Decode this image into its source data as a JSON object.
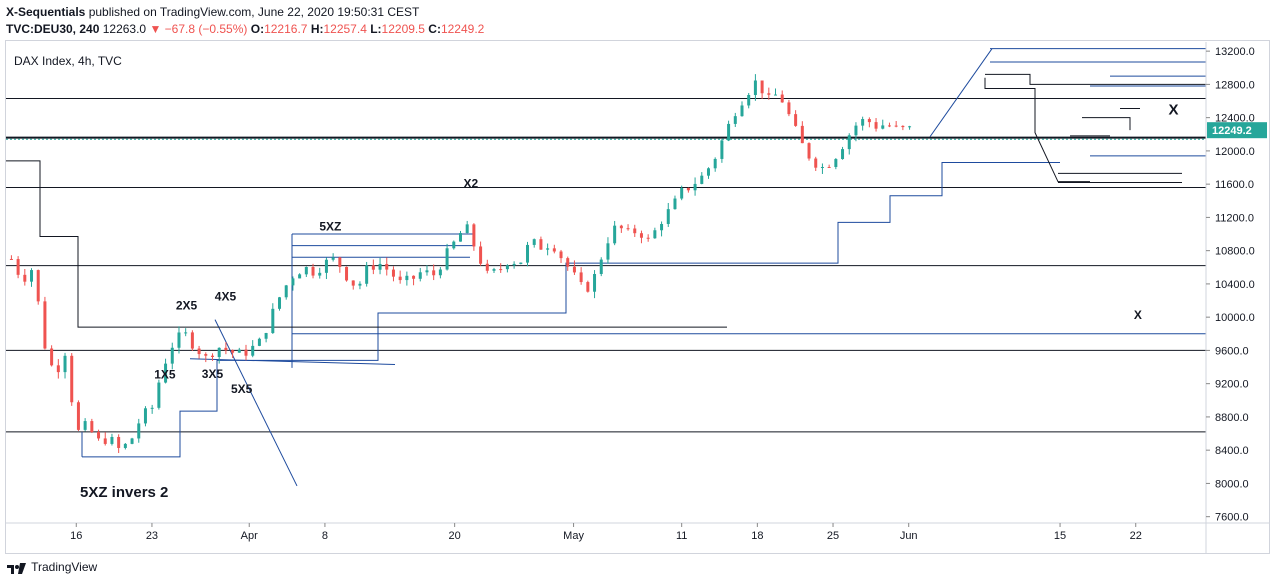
{
  "header": {
    "user": "X-Sequentials",
    "published_text": "published on TradingView.com, June 22, 2020 19:50:31 CEST",
    "symbol": "TVC:DEU30, 240",
    "last": "12263.0",
    "change": "▼ −67.8 (−0.55%)",
    "o_label": "O:",
    "o_value": "12216.7",
    "h_label": "H:",
    "h_value": "12257.4",
    "l_label": "L:",
    "l_value": "12209.5",
    "c_label": "C:",
    "c_value": "12249.2"
  },
  "footer": {
    "brand": "TradingView"
  },
  "colors": {
    "up": "#26a69a",
    "down": "#ef5350",
    "blue": "#1e4b9e",
    "black": "#131722",
    "price_tag": "#26a69a"
  },
  "chart_data": {
    "type": "candlestick",
    "title": "DAX Index, 4h, TVC",
    "current_price": 12249.2,
    "current_price_label": "12249.2",
    "ylim": [
      7560,
      13310
    ],
    "y_ticks": [
      {
        "value": 13200,
        "label": "13200.0"
      },
      {
        "value": 12800,
        "label": "12800.0"
      },
      {
        "value": 12400,
        "label": "12400.0"
      },
      {
        "value": 12000,
        "label": "12000.0"
      },
      {
        "value": 11600,
        "label": "11600.0"
      },
      {
        "value": 11200,
        "label": "11200.0"
      },
      {
        "value": 10800,
        "label": "10800.0"
      },
      {
        "value": 10400,
        "label": "10400.0"
      },
      {
        "value": 10000,
        "label": "10000.0"
      },
      {
        "value": 9600,
        "label": "9600.0"
      },
      {
        "value": 9200,
        "label": "9200.0"
      },
      {
        "value": 8800,
        "label": "8800.0"
      },
      {
        "value": 8400,
        "label": "8400.0"
      },
      {
        "value": 8000,
        "label": "8000.0"
      },
      {
        "value": 7600,
        "label": "7600.0"
      }
    ],
    "x_labels": [
      {
        "label": "16",
        "day": 16
      },
      {
        "label": "23",
        "day": 23
      },
      {
        "label": "Apr",
        "day": 32
      },
      {
        "label": "8",
        "day": 39
      },
      {
        "label": "20",
        "day": 51
      },
      {
        "label": "May",
        "day": 62
      },
      {
        "label": "11",
        "day": 72
      },
      {
        "label": "18",
        "day": 79
      },
      {
        "label": "25",
        "day": 86
      },
      {
        "label": "Jun",
        "day": 93
      },
      {
        "label": "15",
        "day": 107
      },
      {
        "label": "22",
        "day": 114
      }
    ],
    "x_range_days": [
      9.5,
      120.5
    ],
    "price_path": [
      [
        10,
        10700
      ],
      [
        11,
        10450
      ],
      [
        12,
        10600
      ],
      [
        13,
        9700
      ],
      [
        14,
        9300
      ],
      [
        15,
        9600
      ],
      [
        16,
        8600
      ],
      [
        17,
        8700
      ],
      [
        18,
        8500
      ],
      [
        19,
        8550
      ],
      [
        20,
        8400
      ],
      [
        21,
        8500
      ],
      [
        22,
        8800
      ],
      [
        23,
        8900
      ],
      [
        24,
        9400
      ],
      [
        25,
        9700
      ],
      [
        26,
        9800
      ],
      [
        27,
        9650
      ],
      [
        28,
        9500
      ],
      [
        29,
        9650
      ],
      [
        30,
        9600
      ],
      [
        31,
        9550
      ],
      [
        32,
        9600
      ],
      [
        33,
        9700
      ],
      [
        34,
        10000
      ],
      [
        35,
        10300
      ],
      [
        36,
        10500
      ],
      [
        37,
        10600
      ],
      [
        38,
        10550
      ],
      [
        39,
        10650
      ],
      [
        40,
        10700
      ],
      [
        41,
        10500
      ],
      [
        42,
        10350
      ],
      [
        43,
        10600
      ],
      [
        44,
        10650
      ],
      [
        45,
        10550
      ],
      [
        46,
        10400
      ],
      [
        47,
        10450
      ],
      [
        48,
        10550
      ],
      [
        49,
        10500
      ],
      [
        50,
        10700
      ],
      [
        51,
        10900
      ],
      [
        52,
        11100
      ],
      [
        53,
        10800
      ],
      [
        54,
        10500
      ],
      [
        55,
        10550
      ],
      [
        56,
        10700
      ],
      [
        57,
        10650
      ],
      [
        58,
        10900
      ],
      [
        59,
        10850
      ],
      [
        60,
        10900
      ],
      [
        61,
        10700
      ],
      [
        62,
        10500
      ],
      [
        63,
        10300
      ],
      [
        64,
        10500
      ],
      [
        65,
        10900
      ],
      [
        66,
        11100
      ],
      [
        67,
        11000
      ],
      [
        68,
        11050
      ],
      [
        69,
        10900
      ],
      [
        70,
        11150
      ],
      [
        71,
        11300
      ],
      [
        72,
        11500
      ],
      [
        73,
        11600
      ],
      [
        74,
        11700
      ],
      [
        75,
        11900
      ],
      [
        76,
        12200
      ],
      [
        77,
        12500
      ],
      [
        78,
        12700
      ],
      [
        79,
        12850
      ],
      [
        80,
        12600
      ],
      [
        81,
        12700
      ],
      [
        82,
        12400
      ],
      [
        83,
        12100
      ],
      [
        84,
        11900
      ],
      [
        85,
        11800
      ],
      [
        86,
        11900
      ],
      [
        87,
        12100
      ],
      [
        88,
        12300
      ],
      [
        89,
        12380
      ],
      [
        90,
        12300
      ],
      [
        91,
        12320
      ],
      [
        92,
        12250
      ],
      [
        93,
        12260
      ]
    ],
    "annotations": [
      {
        "text": "X2",
        "day": 52.5,
        "price": 11560
      },
      {
        "text": "5XZ",
        "day": 39.5,
        "price": 11040
      },
      {
        "text": "2X5",
        "day": 26.2,
        "price": 10090
      },
      {
        "text": "4X5",
        "day": 29.8,
        "price": 10200
      },
      {
        "text": "1X5",
        "day": 24.2,
        "price": 9260
      },
      {
        "text": "3X5",
        "day": 28.6,
        "price": 9270
      },
      {
        "text": "5X5",
        "day": 31.3,
        "price": 9090
      },
      {
        "text": "X",
        "day": 117.5,
        "price": 12440
      },
      {
        "text": "X",
        "day": 114.2,
        "price": 9980
      }
    ],
    "caption": "5XZ invers 2"
  }
}
